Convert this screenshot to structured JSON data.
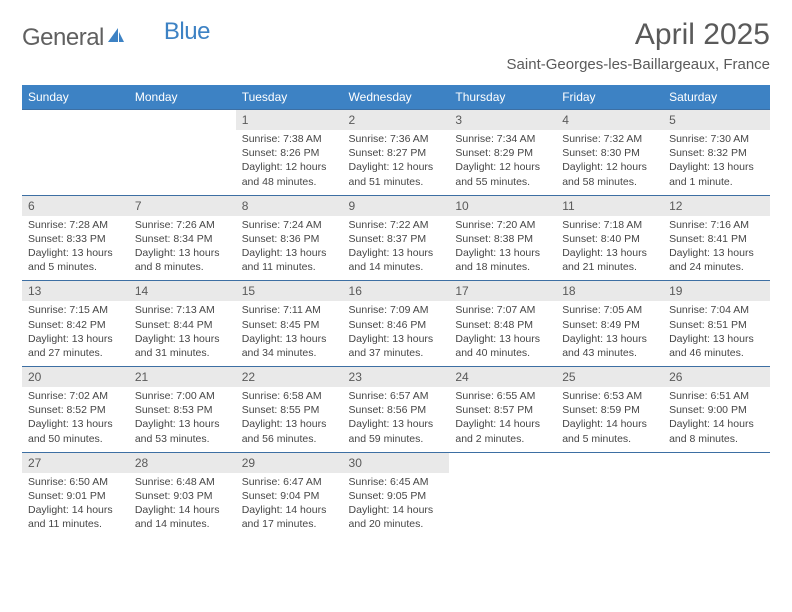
{
  "brand": {
    "name1": "General",
    "name2": "Blue"
  },
  "title": "April 2025",
  "location": "Saint-Georges-les-Baillargeaux, France",
  "colors": {
    "header_bg": "#3d82c4",
    "header_text": "#ffffff",
    "daynum_bg": "#e9e9e9",
    "text": "#5a5a5a",
    "cell_text": "#464646",
    "rule": "#3d6fa3"
  },
  "weekdays": [
    "Sunday",
    "Monday",
    "Tuesday",
    "Wednesday",
    "Thursday",
    "Friday",
    "Saturday"
  ],
  "weeks": [
    {
      "nums": [
        "",
        "",
        "1",
        "2",
        "3",
        "4",
        "5"
      ],
      "cells": [
        "",
        "",
        "Sunrise: 7:38 AM\nSunset: 8:26 PM\nDaylight: 12 hours and 48 minutes.",
        "Sunrise: 7:36 AM\nSunset: 8:27 PM\nDaylight: 12 hours and 51 minutes.",
        "Sunrise: 7:34 AM\nSunset: 8:29 PM\nDaylight: 12 hours and 55 minutes.",
        "Sunrise: 7:32 AM\nSunset: 8:30 PM\nDaylight: 12 hours and 58 minutes.",
        "Sunrise: 7:30 AM\nSunset: 8:32 PM\nDaylight: 13 hours and 1 minute."
      ]
    },
    {
      "nums": [
        "6",
        "7",
        "8",
        "9",
        "10",
        "11",
        "12"
      ],
      "cells": [
        "Sunrise: 7:28 AM\nSunset: 8:33 PM\nDaylight: 13 hours and 5 minutes.",
        "Sunrise: 7:26 AM\nSunset: 8:34 PM\nDaylight: 13 hours and 8 minutes.",
        "Sunrise: 7:24 AM\nSunset: 8:36 PM\nDaylight: 13 hours and 11 minutes.",
        "Sunrise: 7:22 AM\nSunset: 8:37 PM\nDaylight: 13 hours and 14 minutes.",
        "Sunrise: 7:20 AM\nSunset: 8:38 PM\nDaylight: 13 hours and 18 minutes.",
        "Sunrise: 7:18 AM\nSunset: 8:40 PM\nDaylight: 13 hours and 21 minutes.",
        "Sunrise: 7:16 AM\nSunset: 8:41 PM\nDaylight: 13 hours and 24 minutes."
      ]
    },
    {
      "nums": [
        "13",
        "14",
        "15",
        "16",
        "17",
        "18",
        "19"
      ],
      "cells": [
        "Sunrise: 7:15 AM\nSunset: 8:42 PM\nDaylight: 13 hours and 27 minutes.",
        "Sunrise: 7:13 AM\nSunset: 8:44 PM\nDaylight: 13 hours and 31 minutes.",
        "Sunrise: 7:11 AM\nSunset: 8:45 PM\nDaylight: 13 hours and 34 minutes.",
        "Sunrise: 7:09 AM\nSunset: 8:46 PM\nDaylight: 13 hours and 37 minutes.",
        "Sunrise: 7:07 AM\nSunset: 8:48 PM\nDaylight: 13 hours and 40 minutes.",
        "Sunrise: 7:05 AM\nSunset: 8:49 PM\nDaylight: 13 hours and 43 minutes.",
        "Sunrise: 7:04 AM\nSunset: 8:51 PM\nDaylight: 13 hours and 46 minutes."
      ]
    },
    {
      "nums": [
        "20",
        "21",
        "22",
        "23",
        "24",
        "25",
        "26"
      ],
      "cells": [
        "Sunrise: 7:02 AM\nSunset: 8:52 PM\nDaylight: 13 hours and 50 minutes.",
        "Sunrise: 7:00 AM\nSunset: 8:53 PM\nDaylight: 13 hours and 53 minutes.",
        "Sunrise: 6:58 AM\nSunset: 8:55 PM\nDaylight: 13 hours and 56 minutes.",
        "Sunrise: 6:57 AM\nSunset: 8:56 PM\nDaylight: 13 hours and 59 minutes.",
        "Sunrise: 6:55 AM\nSunset: 8:57 PM\nDaylight: 14 hours and 2 minutes.",
        "Sunrise: 6:53 AM\nSunset: 8:59 PM\nDaylight: 14 hours and 5 minutes.",
        "Sunrise: 6:51 AM\nSunset: 9:00 PM\nDaylight: 14 hours and 8 minutes."
      ]
    },
    {
      "nums": [
        "27",
        "28",
        "29",
        "30",
        "",
        "",
        ""
      ],
      "cells": [
        "Sunrise: 6:50 AM\nSunset: 9:01 PM\nDaylight: 14 hours and 11 minutes.",
        "Sunrise: 6:48 AM\nSunset: 9:03 PM\nDaylight: 14 hours and 14 minutes.",
        "Sunrise: 6:47 AM\nSunset: 9:04 PM\nDaylight: 14 hours and 17 minutes.",
        "Sunrise: 6:45 AM\nSunset: 9:05 PM\nDaylight: 14 hours and 20 minutes.",
        "",
        "",
        ""
      ]
    }
  ]
}
